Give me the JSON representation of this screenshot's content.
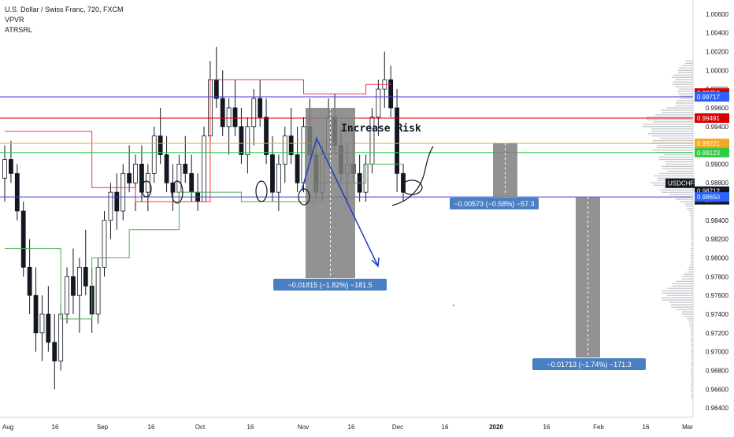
{
  "legend": {
    "title": "U.S. Dollar / Swiss Franc, 720, FXCM",
    "indicator1": "VPVR",
    "indicator2": "ATRSRL"
  },
  "colors": {
    "up": "#131722",
    "down": "#131722",
    "atr_upper": "#f23645",
    "atr_lower": "#4caf50",
    "blue_line": "#3f3fd9",
    "red_line": "#d50000",
    "orange_line": "#f5a623",
    "green_line": "#2ecc40",
    "measure_box": "#7f7f7f",
    "measure_label_bg": "#4a7fc1",
    "volume_profile": "#b0b3bb"
  },
  "chart_data": {
    "type": "candlestick",
    "symbol": "USDCHF",
    "y_axis": {
      "min": 0.963,
      "max": 1.0075,
      "ticks": [
        1.006,
        1.004,
        1.002,
        1.0,
        0.998,
        0.996,
        0.994,
        0.992,
        0.99,
        0.988,
        0.986,
        0.984,
        0.982,
        0.98,
        0.978,
        0.976,
        0.974,
        0.972,
        0.97,
        0.968,
        0.966,
        0.964
      ],
      "tick_labels": [
        "1.00600",
        "1.00400",
        "1.00200",
        "1.00000",
        "0.99800",
        "0.99600",
        "0.99400",
        "0.99200",
        "0.99000",
        "0.98800",
        "0.98600",
        "0.98400",
        "0.98200",
        "0.98000",
        "0.97800",
        "0.97600",
        "0.97400",
        "0.97200",
        "0.97000",
        "0.96800",
        "0.96600",
        "0.96400"
      ]
    },
    "x_axis": {
      "labels": [
        "Aug",
        "16",
        "Sep",
        "16",
        "Oct",
        "16",
        "Nov",
        "16",
        "Dec",
        "16",
        "2020",
        "16",
        "Feb",
        "16",
        "Mar"
      ],
      "bold": [
        false,
        false,
        false,
        false,
        false,
        false,
        false,
        false,
        false,
        false,
        true,
        false,
        false,
        false,
        false
      ]
    },
    "horizontal_lines": [
      {
        "price": 0.99717,
        "color": "blue"
      },
      {
        "price": 0.99491,
        "color": "red"
      },
      {
        "price": 0.99221,
        "color": "orange"
      },
      {
        "price": 0.99123,
        "color": "green"
      },
      {
        "price": 0.9865,
        "color": "blue"
      }
    ],
    "price_labels": [
      {
        "text": "0.99758",
        "price": 0.99758,
        "bg": "#d50000"
      },
      {
        "text": "0.99717",
        "price": 0.99717,
        "bg": "#2962ff"
      },
      {
        "text": "0.99491",
        "price": 0.99491,
        "bg": "#d50000"
      },
      {
        "text": "0.99221",
        "price": 0.99221,
        "bg": "#f5a623"
      },
      {
        "text": "0.99123",
        "price": 0.99123,
        "bg": "#2ecc40"
      },
      {
        "text": "USDCHF",
        "price": 0.98712,
        "bg": "#131722"
      },
      {
        "text": "0.98712",
        "price": 0.98712,
        "bg": "#131722"
      },
      {
        "text": "07:13:07",
        "price": 0.98712,
        "bg": "#131722"
      },
      {
        "text": "0.98650",
        "price": 0.9865,
        "bg": "#2962ff"
      }
    ],
    "annotation_text": "Increase Risk",
    "measurements": [
      {
        "label": "−0.01815 (−1.82%) −181.5"
      },
      {
        "label": "−0.00573 (−0.58%) −57.3"
      },
      {
        "label": "−0.01713 (−1.74%) −171.3"
      }
    ],
    "candles_ohlc": [
      [
        0.9885,
        0.992,
        0.986,
        0.9905
      ],
      [
        0.9905,
        0.9925,
        0.988,
        0.989
      ],
      [
        0.989,
        0.99,
        0.984,
        0.985
      ],
      [
        0.985,
        0.986,
        0.978,
        0.979
      ],
      [
        0.979,
        0.982,
        0.974,
        0.976
      ],
      [
        0.976,
        0.979,
        0.97,
        0.972
      ],
      [
        0.972,
        0.976,
        0.969,
        0.974
      ],
      [
        0.974,
        0.977,
        0.97,
        0.971
      ],
      [
        0.971,
        0.974,
        0.966,
        0.969
      ],
      [
        0.969,
        0.975,
        0.968,
        0.974
      ],
      [
        0.974,
        0.979,
        0.973,
        0.978
      ],
      [
        0.978,
        0.981,
        0.974,
        0.976
      ],
      [
        0.976,
        0.98,
        0.972,
        0.979
      ],
      [
        0.979,
        0.983,
        0.976,
        0.977
      ],
      [
        0.977,
        0.979,
        0.972,
        0.974
      ],
      [
        0.974,
        0.98,
        0.973,
        0.979
      ],
      [
        0.979,
        0.985,
        0.978,
        0.984
      ],
      [
        0.984,
        0.988,
        0.982,
        0.987
      ],
      [
        0.987,
        0.989,
        0.983,
        0.985
      ],
      [
        0.985,
        0.99,
        0.984,
        0.989
      ],
      [
        0.989,
        0.992,
        0.987,
        0.988
      ],
      [
        0.988,
        0.991,
        0.985,
        0.99
      ],
      [
        0.99,
        0.992,
        0.986,
        0.987
      ],
      [
        0.987,
        0.99,
        0.985,
        0.989
      ],
      [
        0.989,
        0.994,
        0.988,
        0.993
      ],
      [
        0.993,
        0.996,
        0.99,
        0.991
      ],
      [
        0.991,
        0.993,
        0.987,
        0.988
      ],
      [
        0.988,
        0.99,
        0.985,
        0.987
      ],
      [
        0.987,
        0.991,
        0.986,
        0.99
      ],
      [
        0.99,
        0.993,
        0.988,
        0.989
      ],
      [
        0.989,
        0.991,
        0.986,
        0.987
      ],
      [
        0.987,
        0.989,
        0.985,
        0.986
      ],
      [
        0.986,
        0.994,
        0.986,
        0.993
      ],
      [
        0.993,
        1.001,
        0.992,
        0.999
      ],
      [
        0.999,
        1.0025,
        0.996,
        0.997
      ],
      [
        0.997,
        1.0,
        0.993,
        0.994
      ],
      [
        0.994,
        0.997,
        0.991,
        0.996
      ],
      [
        0.996,
        0.999,
        0.993,
        0.994
      ],
      [
        0.994,
        0.996,
        0.99,
        0.991
      ],
      [
        0.991,
        0.995,
        0.989,
        0.994
      ],
      [
        0.994,
        0.998,
        0.992,
        0.997
      ],
      [
        0.997,
        0.999,
        0.994,
        0.995
      ],
      [
        0.995,
        0.997,
        0.99,
        0.991
      ],
      [
        0.991,
        0.993,
        0.986,
        0.987
      ],
      [
        0.987,
        0.991,
        0.985,
        0.99
      ],
      [
        0.99,
        0.994,
        0.988,
        0.993
      ],
      [
        0.993,
        0.996,
        0.99,
        0.991
      ],
      [
        0.991,
        0.994,
        0.987,
        0.988
      ],
      [
        0.988,
        0.995,
        0.987,
        0.994
      ],
      [
        0.994,
        0.997,
        0.99,
        0.991
      ],
      [
        0.991,
        0.993,
        0.986,
        0.987
      ],
      [
        0.987,
        0.992,
        0.986,
        0.991
      ],
      [
        0.991,
        0.997,
        0.99,
        0.995
      ],
      [
        0.995,
        0.9975,
        0.991,
        0.992
      ],
      [
        0.992,
        0.994,
        0.988,
        0.989
      ],
      [
        0.989,
        0.992,
        0.986,
        0.99
      ],
      [
        0.99,
        0.994,
        0.988,
        0.989
      ],
      [
        0.989,
        0.991,
        0.986,
        0.987
      ],
      [
        0.987,
        0.991,
        0.986,
        0.99
      ],
      [
        0.99,
        0.996,
        0.989,
        0.995
      ],
      [
        0.995,
        0.999,
        0.993,
        0.998
      ],
      [
        0.998,
        1.002,
        0.996,
        0.999
      ],
      [
        0.999,
        1.0005,
        0.995,
        0.996
      ],
      [
        0.996,
        0.998,
        0.987,
        0.989
      ],
      [
        0.989,
        0.99,
        0.986,
        0.987
      ]
    ]
  }
}
